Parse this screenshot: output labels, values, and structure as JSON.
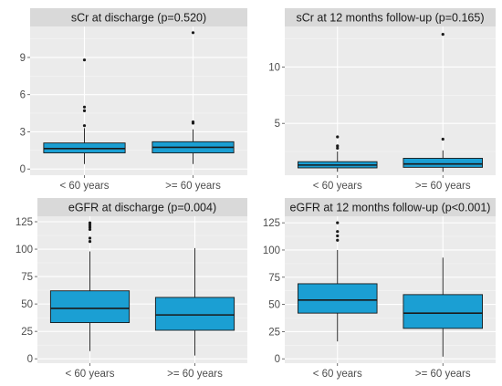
{
  "chart_data": [
    {
      "type": "boxplot",
      "title": "sCr at discharge (p=0.520)",
      "categories": [
        "< 60 years",
        ">= 60 years"
      ],
      "yticks": [
        0,
        3,
        6,
        9
      ],
      "ylim": [
        -0.5,
        11.5
      ],
      "grid": true,
      "fill_color": "#1b9fd3",
      "boxes": [
        {
          "category": "< 60 years",
          "min": 0.4,
          "q1": 1.3,
          "median": 1.65,
          "q3": 2.1,
          "max": 3.3,
          "outliers": [
            3.5,
            4.7,
            5.0,
            8.8
          ]
        },
        {
          "category": ">= 60 years",
          "min": 0.4,
          "q1": 1.3,
          "median": 1.75,
          "q3": 2.2,
          "max": 3.2,
          "outliers": [
            3.7,
            3.8,
            11.0
          ]
        }
      ]
    },
    {
      "type": "boxplot",
      "title": "sCr at 12 months follow-up (p=0.165)",
      "categories": [
        "< 60 years",
        ">= 60 years"
      ],
      "yticks": [
        5,
        10
      ],
      "ylim": [
        0.4,
        13.6
      ],
      "grid": true,
      "fill_color": "#1b9fd3",
      "boxes": [
        {
          "category": "< 60 years",
          "min": 0.7,
          "q1": 1.05,
          "median": 1.3,
          "q3": 1.6,
          "max": 2.5,
          "outliers": [
            2.8,
            3.0,
            3.8
          ]
        },
        {
          "category": ">= 60 years",
          "min": 0.7,
          "q1": 1.1,
          "median": 1.4,
          "q3": 1.9,
          "max": 2.6,
          "outliers": [
            3.6,
            12.9
          ]
        }
      ]
    },
    {
      "type": "boxplot",
      "title": "eGFR at discharge (p=0.004)",
      "categories": [
        "< 60 years",
        ">= 60 years"
      ],
      "yticks": [
        0,
        25,
        50,
        75,
        100,
        125
      ],
      "ylim": [
        -4,
        130
      ],
      "grid": true,
      "fill_color": "#1b9fd3",
      "boxes": [
        {
          "category": "< 60 years",
          "min": 7,
          "q1": 33,
          "median": 46,
          "q3": 62,
          "max": 98,
          "outliers": [
            107,
            110,
            118,
            120,
            122,
            124
          ]
        },
        {
          "category": ">= 60 years",
          "min": 3,
          "q1": 26,
          "median": 40,
          "q3": 56,
          "max": 101,
          "outliers": []
        }
      ]
    },
    {
      "type": "boxplot",
      "title": "eGFR at 12 months follow-up (p<0.001)",
      "categories": [
        "< 60 years",
        ">= 60 years"
      ],
      "yticks": [
        0,
        25,
        50,
        75,
        100,
        125
      ],
      "ylim": [
        -4,
        131
      ],
      "grid": true,
      "fill_color": "#1b9fd3",
      "boxes": [
        {
          "category": "< 60 years",
          "min": 16,
          "q1": 42,
          "median": 54,
          "q3": 69,
          "max": 100,
          "outliers": [
            109,
            113,
            117,
            125
          ]
        },
        {
          "category": ">= 60 years",
          "min": 2,
          "q1": 28,
          "median": 42,
          "q3": 59,
          "max": 93,
          "outliers": []
        }
      ]
    }
  ]
}
